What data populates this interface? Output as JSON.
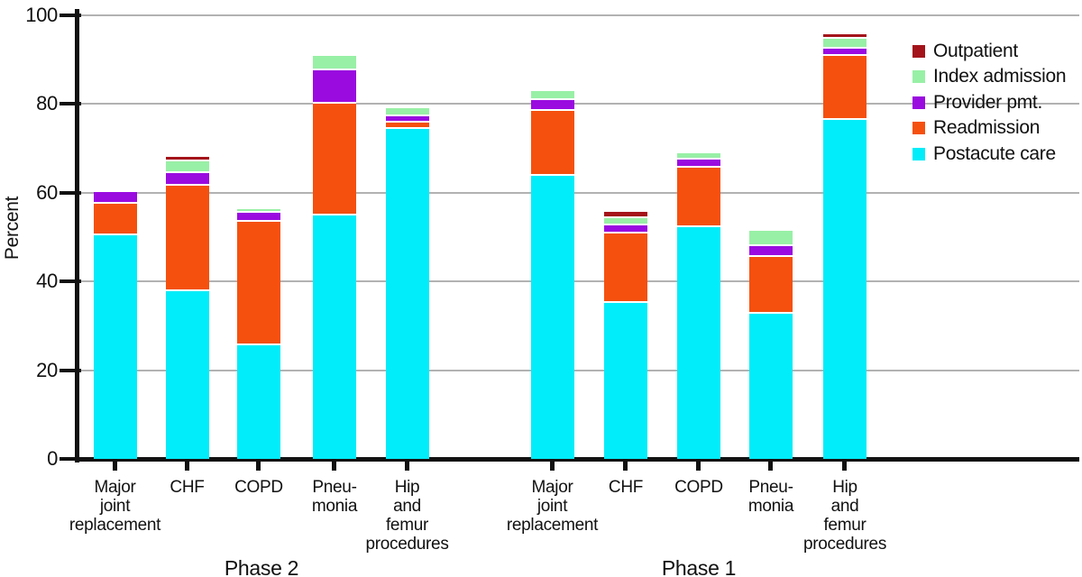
{
  "chart_data": {
    "type": "bar",
    "stacked": true,
    "title": "",
    "ylabel": "Percent",
    "xlabel": "",
    "ylim": [
      0,
      100
    ],
    "yticks": [
      0,
      20,
      40,
      60,
      80,
      100
    ],
    "grid": "horizontal",
    "grid_color": "#b2b2b2",
    "legend_position": "upper-right",
    "legend_order_top_to_bottom": [
      "Outpatient",
      "Index admission",
      "Provider pmt.",
      "Readmission",
      "Postacute care"
    ],
    "groups": [
      {
        "label": "Phase 2",
        "categories": [
          "Major joint replacement",
          "CHF",
          "COPD",
          "Pneumonia",
          "Hip and femur procedures"
        ]
      },
      {
        "label": "Phase 1",
        "categories": [
          "Major joint replacement",
          "CHF",
          "COPD",
          "Pneumonia",
          "Hip and femur procedures"
        ]
      }
    ],
    "columns": [
      {
        "group": "Phase 2",
        "category": "Major joint replacement"
      },
      {
        "group": "Phase 2",
        "category": "CHF"
      },
      {
        "group": "Phase 2",
        "category": "COPD"
      },
      {
        "group": "Phase 2",
        "category": "Pneumonia"
      },
      {
        "group": "Phase 2",
        "category": "Hip and femur procedures"
      },
      {
        "group": "Phase 1",
        "category": "Major joint replacement"
      },
      {
        "group": "Phase 1",
        "category": "CHF"
      },
      {
        "group": "Phase 1",
        "category": "COPD"
      },
      {
        "group": "Phase 1",
        "category": "Pneumonia"
      },
      {
        "group": "Phase 1",
        "category": "Hip and femur procedures"
      }
    ],
    "category_label_lines": [
      [
        "Major",
        "joint",
        "replacement"
      ],
      [
        "CHF"
      ],
      [
        "COPD"
      ],
      [
        "Pneu-",
        "monia"
      ],
      [
        "Hip",
        "and",
        "femur",
        "procedures"
      ]
    ],
    "series": [
      {
        "name": "Postacute care",
        "color": "#00edf9",
        "values": [
          50.5,
          37.8,
          25.7,
          54.8,
          74.4,
          63.8,
          35.2,
          52.3,
          32.8,
          76.4
        ]
      },
      {
        "name": "Readmission",
        "color": "#f5500e",
        "values": [
          7.0,
          23.7,
          27.7,
          25.2,
          1.5,
          14.6,
          15.6,
          13.3,
          12.7,
          14.4
        ]
      },
      {
        "name": "Provider pmt.",
        "color": "#9a0be0",
        "values": [
          2.6,
          2.9,
          2.0,
          7.6,
          1.3,
          2.4,
          1.8,
          1.9,
          2.5,
          1.6
        ]
      },
      {
        "name": "Index admission",
        "color": "#98f0a6",
        "values": [
          0,
          2.6,
          0.8,
          3.2,
          1.9,
          2.2,
          1.7,
          1.4,
          3.4,
          2.3
        ]
      },
      {
        "name": "Outpatient",
        "color": "#a4131a",
        "values": [
          0,
          1.1,
          0,
          0,
          0,
          0,
          1.4,
          0,
          0,
          1.0
        ]
      }
    ]
  }
}
